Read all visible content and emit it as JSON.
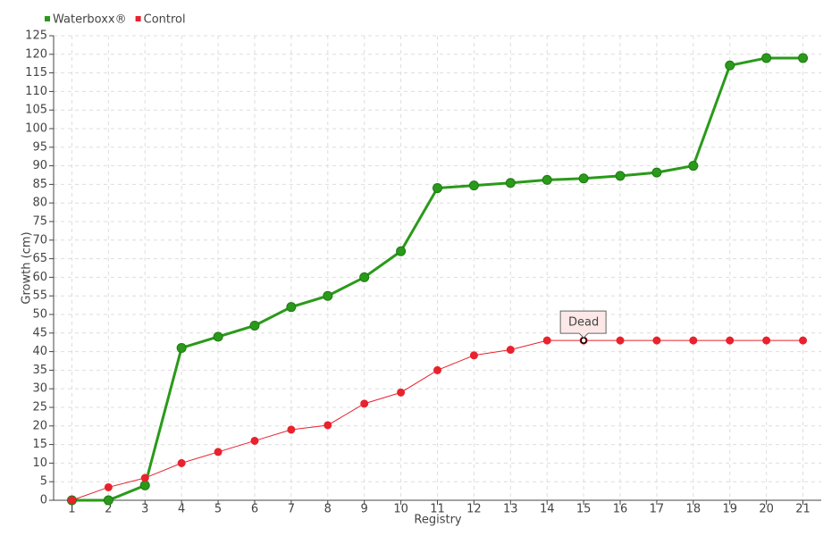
{
  "chart_data": {
    "type": "line",
    "x_label": "Registry",
    "y_label": "Growth (cm)",
    "x": [
      1,
      2,
      3,
      4,
      5,
      6,
      7,
      8,
      9,
      10,
      11,
      12,
      13,
      14,
      15,
      16,
      17,
      18,
      19,
      20,
      21
    ],
    "xlim": [
      0.5,
      21.5
    ],
    "xticks": [
      1,
      2,
      3,
      4,
      5,
      6,
      7,
      8,
      9,
      10,
      11,
      12,
      13,
      14,
      15,
      16,
      17,
      18,
      19,
      20,
      21
    ],
    "ylim": [
      0,
      125
    ],
    "yticks": [
      0,
      5,
      10,
      15,
      20,
      25,
      30,
      35,
      40,
      45,
      50,
      55,
      60,
      65,
      70,
      75,
      80,
      85,
      90,
      95,
      100,
      105,
      110,
      115,
      120,
      125
    ],
    "grid": true,
    "legend": "top-left",
    "series": [
      {
        "name": "Waterboxx®",
        "color": "#2a9a1a",
        "values": [
          0,
          0,
          4,
          41,
          44,
          47,
          52,
          55,
          60,
          67,
          84,
          84.7,
          85.4,
          86.2,
          86.6,
          87.3,
          88.2,
          90,
          117,
          119,
          119
        ]
      },
      {
        "name": "Control",
        "color": "#e8222e",
        "values": [
          0,
          3.5,
          6,
          10,
          13,
          16,
          19,
          20.2,
          26,
          29,
          35,
          39,
          40.5,
          43,
          43,
          43,
          43,
          43,
          43,
          43,
          43
        ]
      }
    ],
    "annotations": [
      {
        "label": "Dead",
        "x": 15,
        "y": 43
      }
    ]
  }
}
